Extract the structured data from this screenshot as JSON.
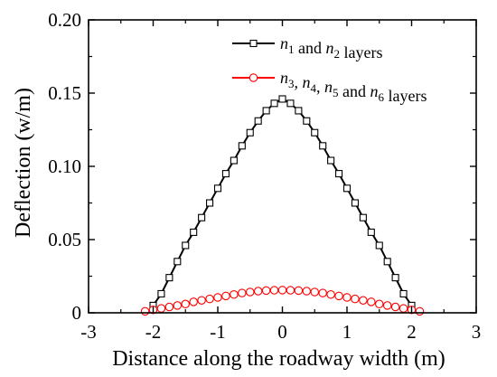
{
  "chart_data": {
    "type": "line",
    "title": "",
    "xlabel": "Distance along the roadway width (m)",
    "ylabel": "Deflection (w/m)",
    "xlim": [
      -3,
      3
    ],
    "ylim": [
      0,
      0.2
    ],
    "xticks": [
      -3,
      -2,
      -1,
      0,
      1,
      2,
      3
    ],
    "xtick_labels": [
      "-3",
      "-2",
      "-1",
      "0",
      "1",
      "2",
      "3"
    ],
    "yticks": [
      0,
      0.05,
      0.1,
      0.15,
      0.2
    ],
    "ytick_labels": [
      "0",
      "0.05",
      "0.10",
      "0.15",
      "0.20"
    ],
    "grid": false,
    "legend_position": "top-right",
    "series": [
      {
        "name": "n1 and n2 layers",
        "legend_parts": [
          [
            "n",
            "i"
          ],
          [
            "1",
            "sub"
          ],
          [
            " and ",
            "r"
          ],
          [
            "n",
            "i"
          ],
          [
            "2",
            "sub"
          ],
          [
            " layers",
            "r"
          ]
        ],
        "color": "#000000",
        "marker": "square",
        "x": [
          -2.0,
          -1.875,
          -1.75,
          -1.625,
          -1.5,
          -1.375,
          -1.25,
          -1.125,
          -1.0,
          -0.875,
          -0.75,
          -0.625,
          -0.5,
          -0.375,
          -0.25,
          -0.125,
          0.0,
          0.125,
          0.25,
          0.375,
          0.5,
          0.625,
          0.75,
          0.875,
          1.0,
          1.125,
          1.25,
          1.375,
          1.5,
          1.625,
          1.75,
          1.875,
          2.0
        ],
        "y": [
          0.005,
          0.013,
          0.024,
          0.035,
          0.046,
          0.055,
          0.065,
          0.075,
          0.085,
          0.095,
          0.104,
          0.114,
          0.123,
          0.131,
          0.138,
          0.143,
          0.146,
          0.143,
          0.138,
          0.131,
          0.123,
          0.114,
          0.104,
          0.095,
          0.085,
          0.075,
          0.065,
          0.055,
          0.046,
          0.035,
          0.024,
          0.013,
          0.005
        ]
      },
      {
        "name": "n3, n4, n5 and n6 layers",
        "legend_parts": [
          [
            "n",
            "i"
          ],
          [
            "3",
            "sub"
          ],
          [
            ", ",
            "r"
          ],
          [
            "n",
            "i"
          ],
          [
            "4",
            "sub"
          ],
          [
            ", ",
            "r"
          ],
          [
            "n",
            "i"
          ],
          [
            "5",
            "sub"
          ],
          [
            " and ",
            "r"
          ],
          [
            "n",
            "i"
          ],
          [
            "6",
            "sub"
          ],
          [
            " layers",
            "r"
          ]
        ],
        "color": "#ff0000",
        "marker": "circle",
        "x": [
          -2.125,
          -2.0,
          -1.875,
          -1.75,
          -1.625,
          -1.5,
          -1.375,
          -1.25,
          -1.125,
          -1.0,
          -0.875,
          -0.75,
          -0.625,
          -0.5,
          -0.375,
          -0.25,
          -0.125,
          0.0,
          0.125,
          0.25,
          0.375,
          0.5,
          0.625,
          0.75,
          0.875,
          1.0,
          1.125,
          1.25,
          1.375,
          1.5,
          1.625,
          1.75,
          1.875,
          2.0,
          2.125
        ],
        "y": [
          0.001,
          0.002,
          0.003,
          0.004,
          0.005,
          0.006,
          0.0075,
          0.0085,
          0.0095,
          0.0105,
          0.0115,
          0.0125,
          0.0135,
          0.0142,
          0.0148,
          0.0152,
          0.0154,
          0.0155,
          0.0154,
          0.0152,
          0.0148,
          0.0142,
          0.0135,
          0.0125,
          0.0115,
          0.0105,
          0.0095,
          0.0085,
          0.0075,
          0.006,
          0.005,
          0.004,
          0.003,
          0.002,
          0.001
        ]
      }
    ]
  }
}
